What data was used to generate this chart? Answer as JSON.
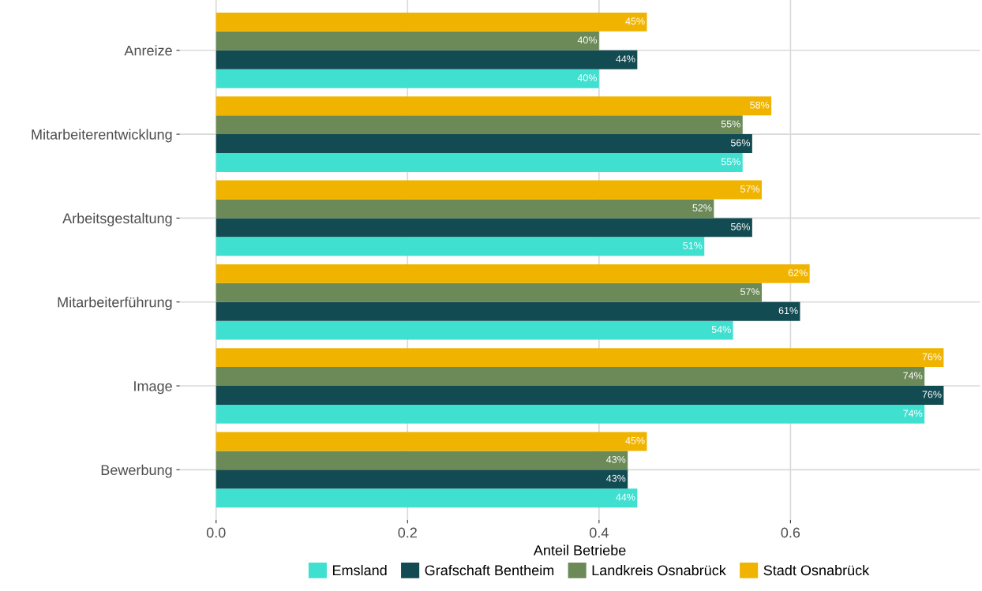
{
  "chart_data": {
    "type": "bar",
    "orientation": "horizontal",
    "xlabel": "Anteil Betriebe",
    "categories": [
      "Anreize",
      "Mitarbeiterentwicklung",
      "Arbeitsgestaltung",
      "Mitarbeiterführung",
      "Image",
      "Bewerbung"
    ],
    "series": [
      {
        "name": "Emsland",
        "color": "#40e0d0",
        "values": [
          0.4,
          0.55,
          0.51,
          0.54,
          0.74,
          0.44
        ],
        "value_labels": [
          "40%",
          "55%",
          "51%",
          "54%",
          "74%",
          "44%"
        ]
      },
      {
        "name": "Grafschaft Bentheim",
        "color": "#134b52",
        "values": [
          0.44,
          0.56,
          0.56,
          0.61,
          0.76,
          0.43
        ],
        "value_labels": [
          "44%",
          "56%",
          "56%",
          "61%",
          "76%",
          "43%"
        ]
      },
      {
        "name": "Landkreis Osnabrück",
        "color": "#6b8a58",
        "values": [
          0.4,
          0.55,
          0.52,
          0.57,
          0.74,
          0.43
        ],
        "value_labels": [
          "40%",
          "55%",
          "52%",
          "57%",
          "74%",
          "43%"
        ]
      },
      {
        "name": "Stadt Osnabrück",
        "color": "#f0b400",
        "values": [
          0.45,
          0.58,
          0.57,
          0.62,
          0.76,
          0.45
        ],
        "value_labels": [
          "45%",
          "58%",
          "57%",
          "62%",
          "76%",
          "45%"
        ]
      }
    ],
    "xlim": [
      -0.038,
      0.798
    ],
    "xticks": [
      {
        "value": 0,
        "label": "0.0"
      },
      {
        "value": 0.2,
        "label": "0.2"
      },
      {
        "value": 0.4,
        "label": "0.4"
      },
      {
        "value": 0.6,
        "label": "0.6"
      }
    ],
    "grid": true,
    "legend": "bottom"
  }
}
